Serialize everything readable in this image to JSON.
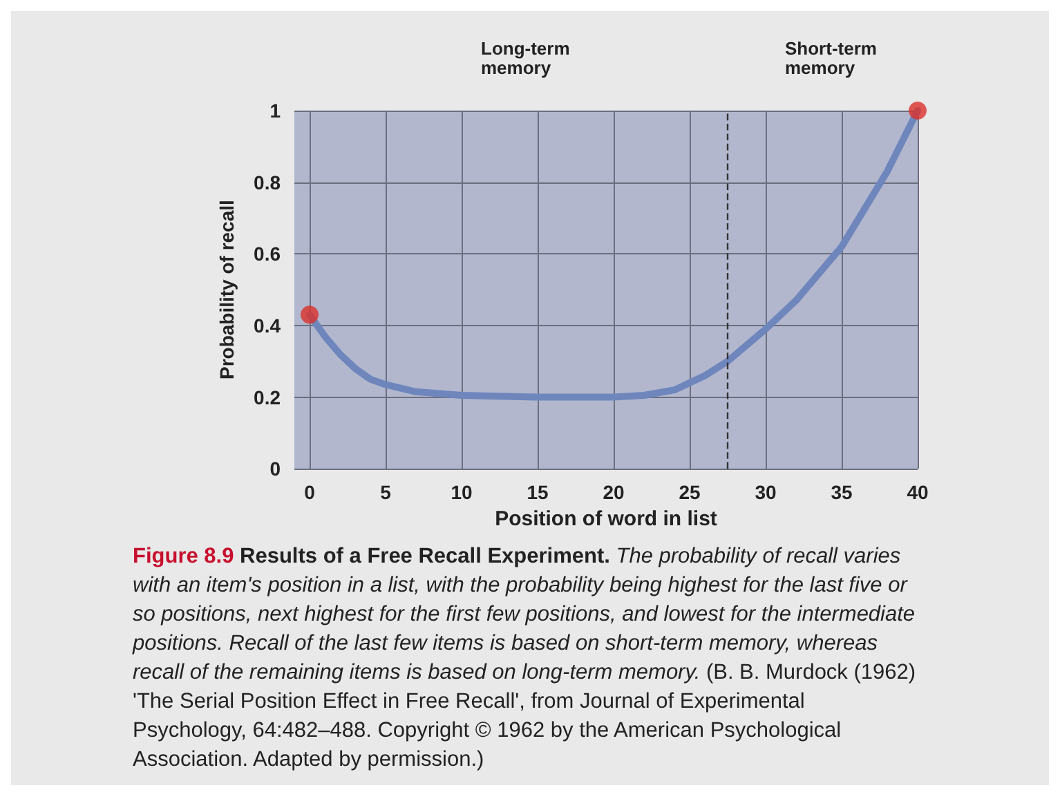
{
  "chart_data": {
    "type": "line",
    "xlabel": "Position of word in list",
    "ylabel": "Probability of recall",
    "series": [
      {
        "color": "#6f86bd",
        "marker": "none",
        "x": [
          0,
          1,
          2,
          3,
          4,
          5,
          7,
          10,
          15,
          20,
          22,
          24,
          26,
          27.5,
          30,
          32,
          35,
          38,
          40
        ],
        "values": [
          0.43,
          0.37,
          0.32,
          0.28,
          0.25,
          0.235,
          0.215,
          0.205,
          0.2,
          0.2,
          0.205,
          0.22,
          0.26,
          0.3,
          0.39,
          0.47,
          0.62,
          0.83,
          1.0
        ]
      },
      {
        "type": "scatter",
        "color": "#d9312b",
        "marker": "circle",
        "x": [
          0,
          40
        ],
        "values": [
          0.43,
          1.0
        ]
      }
    ],
    "xlim": [
      -1,
      40
    ],
    "xticks": [
      0,
      5,
      10,
      15,
      20,
      25,
      30,
      35,
      40
    ],
    "ylim": [
      0,
      1
    ],
    "yticks": [
      0,
      0.2,
      0.4,
      0.6,
      0.8,
      1
    ],
    "grid": true,
    "ref_lines": [
      {
        "axis": "x",
        "value": 27.5,
        "line_style": "dashed",
        "color": "#333333"
      }
    ],
    "annotations": [
      "Long-term\nmemory",
      "Short-term\nmemory",
      "Figure 8.9",
      "Results of a Free Recall Experiment.",
      "The probability of recall varies with an item's position in a list, with the probability being highest for the last five or so positions, next highest for the first few positions, and lowest for the intermediate positions. Recall of the last few items is based on short-term memory, whereas recall of the remaining items is based on long-term memory.",
      "(B. B. Murdock (1962) 'The Serial Position Effect in Free Recall', from Journal of Experimental Psychology, 64:482–488. Copyright © 1962 by the American Psychological Association. Adapted by permission.)"
    ]
  }
}
